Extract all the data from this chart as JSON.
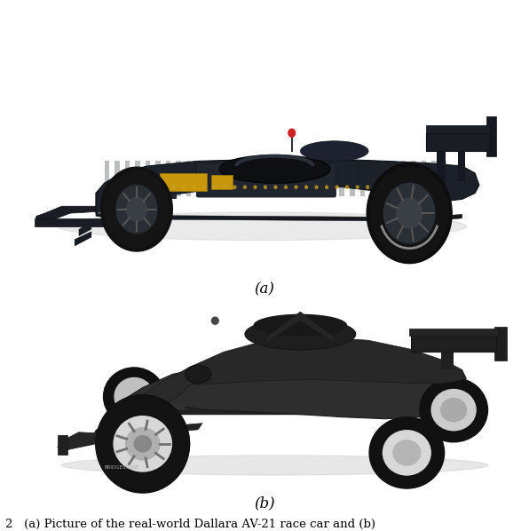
{
  "background_color": "#ffffff",
  "label_a": "(a)",
  "label_b": "(b)",
  "caption": "2   (a) Picture of the real-world Dallara AV-21 race car and (b)",
  "label_fontsize": 12,
  "caption_fontsize": 9.5,
  "figsize": [
    5.96,
    5.98
  ],
  "dpi": 100
}
